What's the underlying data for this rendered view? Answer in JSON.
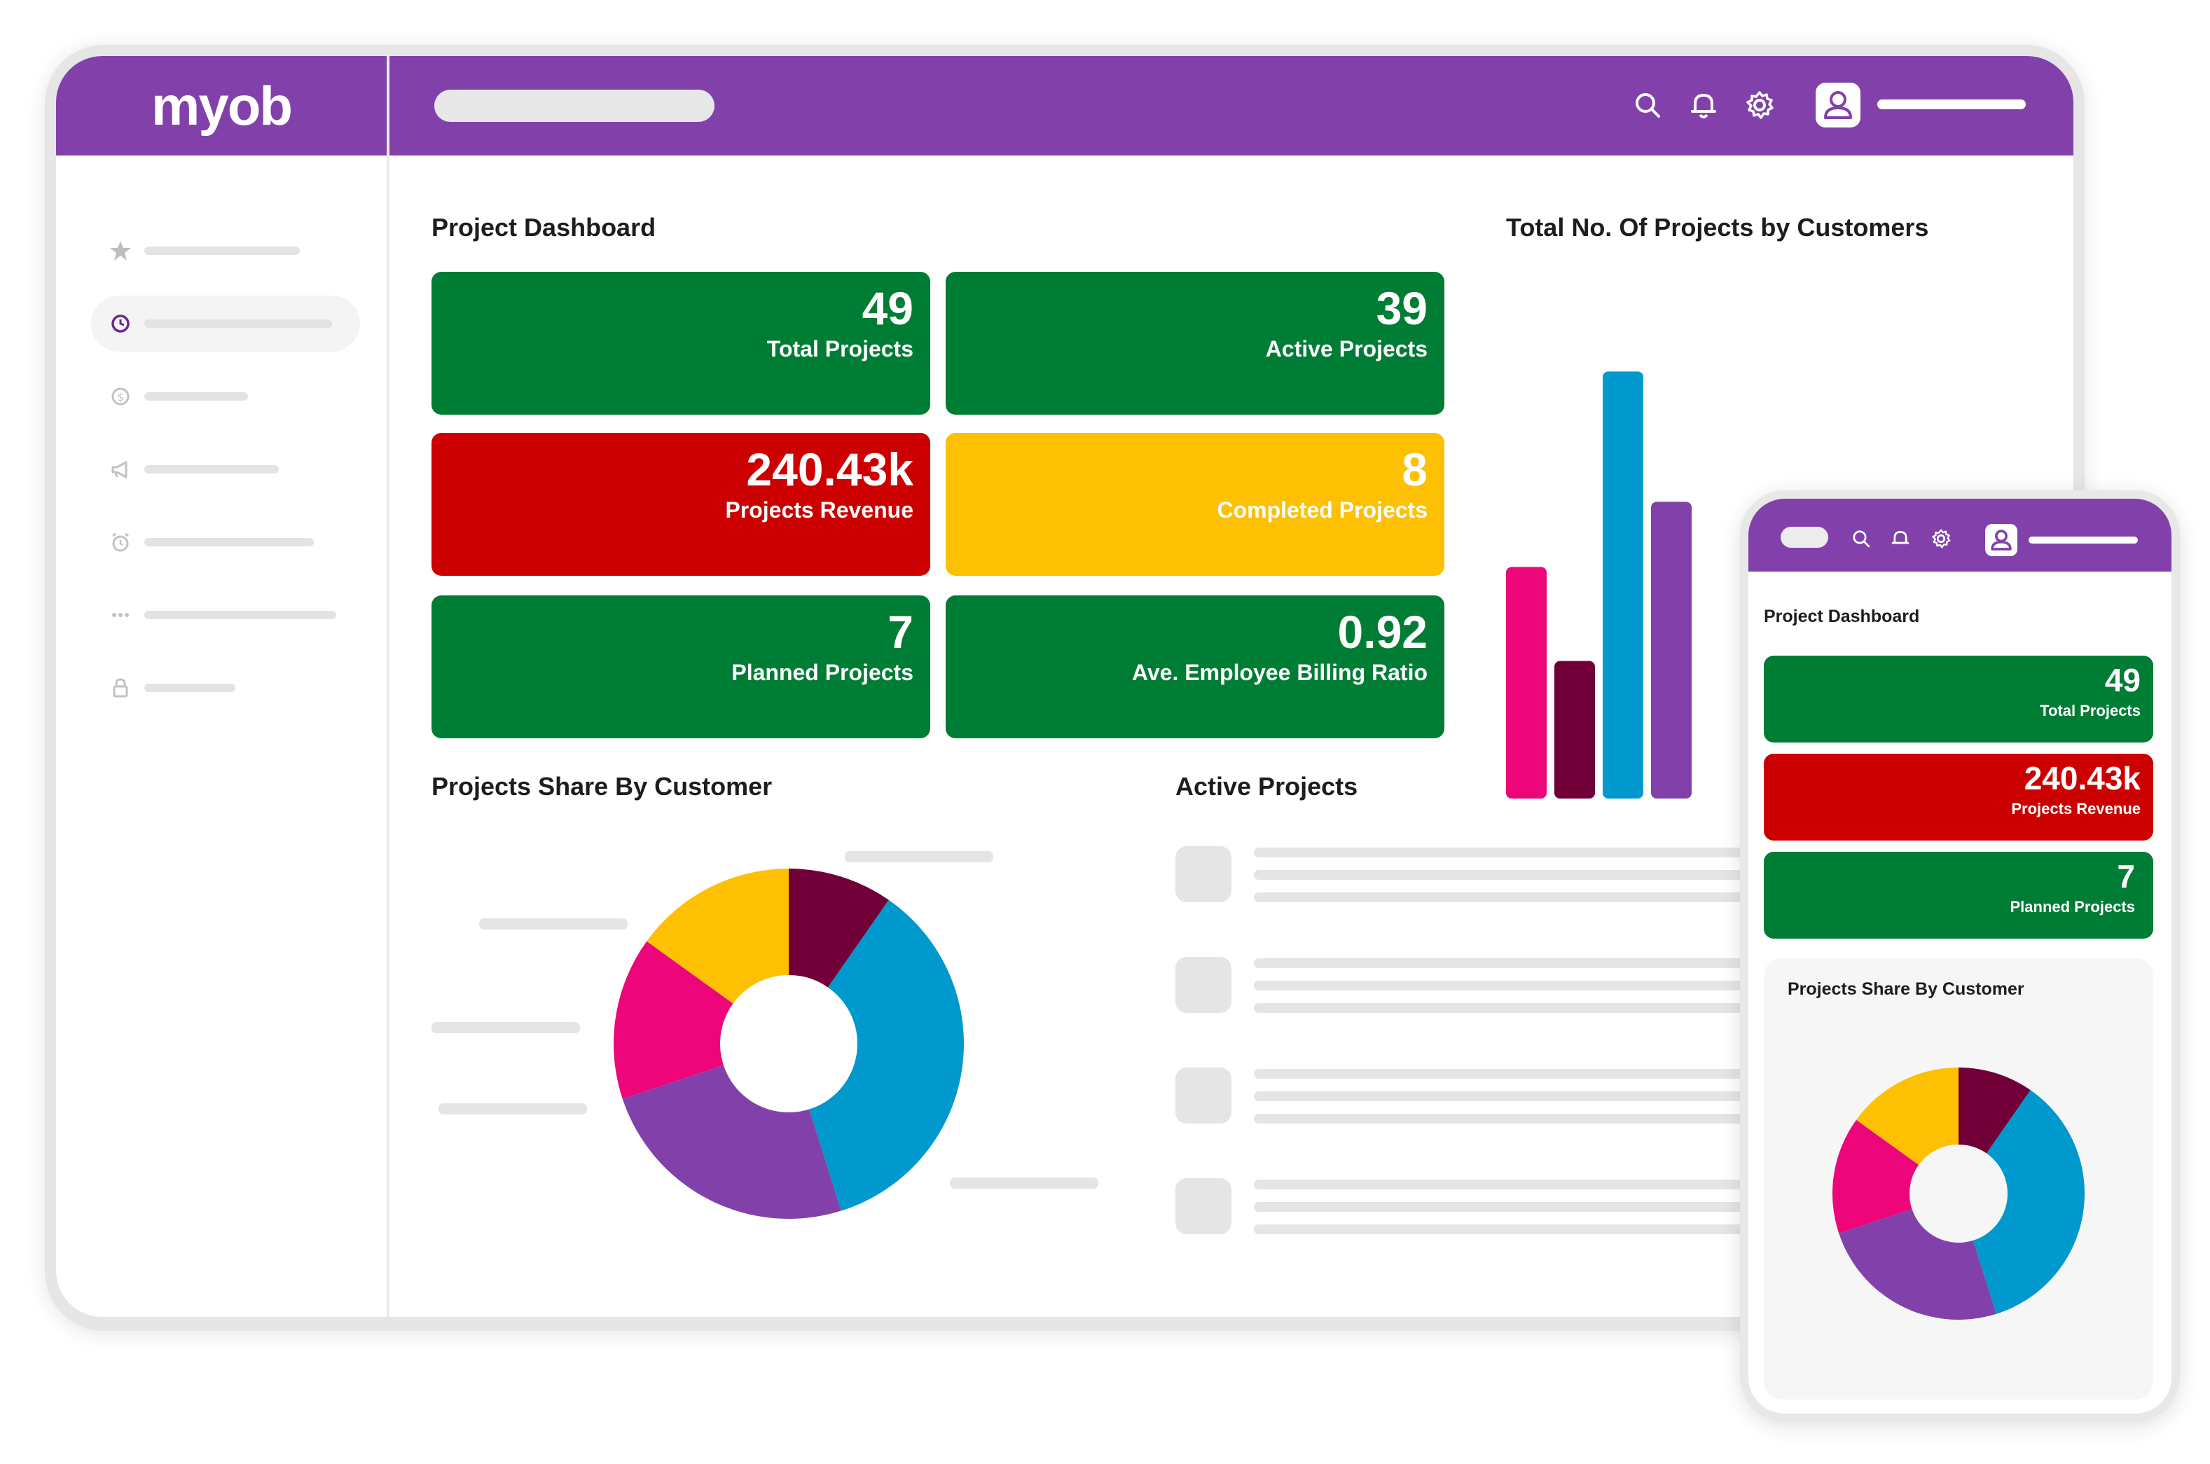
{
  "app": {
    "logo_text": "myob",
    "brand_color": "#8241aa"
  },
  "topbar": {
    "icons": [
      "search-icon",
      "bell-icon",
      "gear-icon",
      "user-avatar-icon"
    ]
  },
  "sidebar": {
    "items": [
      {
        "icon": "star-icon",
        "active": false
      },
      {
        "icon": "clock-icon",
        "active": true
      },
      {
        "icon": "dollar-icon",
        "active": false
      },
      {
        "icon": "megaphone-icon",
        "active": false
      },
      {
        "icon": "alarm-icon",
        "active": false
      },
      {
        "icon": "more-icon",
        "active": false
      },
      {
        "icon": "lock-icon",
        "active": false
      }
    ]
  },
  "dashboard": {
    "title": "Project Dashboard",
    "kpis": [
      {
        "value": "49",
        "label": "Total Projects",
        "color": "#007d35"
      },
      {
        "value": "39",
        "label": "Active Projects",
        "color": "#007d35"
      },
      {
        "value": "240.43k",
        "label": "Projects Revenue",
        "color": "#cc0000"
      },
      {
        "value": "8",
        "label": "Completed Projects",
        "color": "#fec002"
      },
      {
        "value": "7",
        "label": "Planned Projects",
        "color": "#007d35"
      },
      {
        "value": "0.92",
        "label": "Ave. Employee Billing Ratio",
        "color": "#007d35"
      }
    ],
    "share_title": "Projects Share By Customer",
    "active_title": "Active Projects",
    "bar_title": "Total No. Of Projects by Customers"
  },
  "chart_data": [
    {
      "type": "bar",
      "title": "Total No. Of Projects by Customers",
      "categories": [
        "",
        "",
        "",
        ""
      ],
      "values": [
        16,
        9.5,
        29.5,
        20.5
      ],
      "colors": [
        "#ec0679",
        "#700037",
        "#0099cd",
        "#8241aa"
      ],
      "ylim": [
        0,
        30
      ],
      "grid": false,
      "note_visible": "partially occluded by mobile mockup"
    },
    {
      "type": "pie",
      "title": "Projects Share By Customer",
      "values": [
        9,
        33,
        23,
        14,
        14
      ],
      "colors": [
        "#700037",
        "#0099cd",
        "#8241aa",
        "#ec0679",
        "#fec002"
      ],
      "donut": true
    }
  ],
  "mobile": {
    "title": "Project Dashboard",
    "kpis": [
      {
        "value": "49",
        "label": "Total Projects",
        "color": "#007d35"
      },
      {
        "value": "240.43k",
        "label": "Projects Revenue",
        "color": "#cc0000"
      },
      {
        "value": "7",
        "label": "Planned Projects",
        "color": "#007d35"
      }
    ],
    "share_title": "Projects Share By Customer"
  }
}
